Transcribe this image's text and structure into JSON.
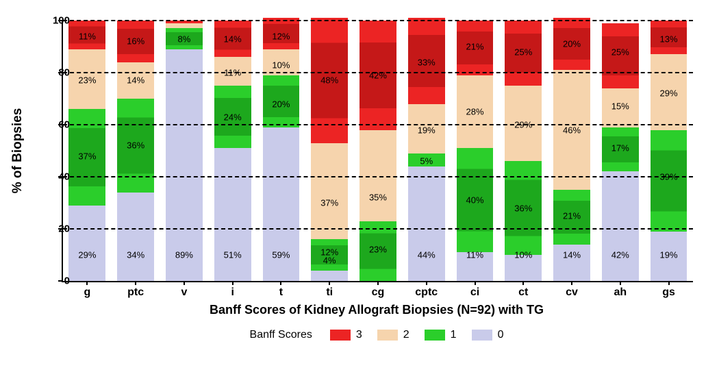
{
  "chart": {
    "type": "stacked-bar",
    "ylabel": "% of Biopsies",
    "xlabel": "Banff Scores of Kidney Allograft Biopsies (N=92) with TG",
    "ylim": [
      0,
      100
    ],
    "ytick_step": 20,
    "grid_dash_values": [
      20,
      40,
      60,
      80,
      100
    ],
    "background_color": "#ffffff",
    "axis_color": "#000000",
    "label_fontsize_pt": 14,
    "axis_title_fontsize_pt": 15,
    "xaxis_title_fontsize_pt": 14,
    "colors": {
      "score0": "#c9cbea",
      "score1": "#2bce2b",
      "score1_inner": "#1da81d",
      "score2": "#f6d4ad",
      "score3": "#ec2424",
      "score3_inner": "#c51818"
    },
    "legend": {
      "title": "Banff Scores",
      "items": [
        {
          "label": "3",
          "color_key": "score3"
        },
        {
          "label": "2",
          "color_key": "score2"
        },
        {
          "label": "1",
          "color_key": "score1"
        },
        {
          "label": "0",
          "color_key": "score0"
        }
      ]
    },
    "categories": [
      "g",
      "ptc",
      "v",
      "i",
      "t",
      "ti",
      "cg",
      "cptc",
      "ci",
      "ct",
      "cv",
      "ah",
      "gs"
    ],
    "series": [
      {
        "cat": "g",
        "segs": [
          {
            "score": 0,
            "val": 29,
            "label": "29%",
            "label_y": 10
          },
          {
            "score": 1,
            "val": 37,
            "label": "37%",
            "label_y": 48
          },
          {
            "score": 2,
            "val": 23,
            "label": "23%",
            "label_y": 77,
            "outside": true
          },
          {
            "score": 3,
            "val": 11,
            "label": "11%",
            "label_y": 94
          }
        ]
      },
      {
        "cat": "ptc",
        "segs": [
          {
            "score": 0,
            "val": 34,
            "label": "34%",
            "label_y": 10
          },
          {
            "score": 1,
            "val": 36,
            "label": "36%",
            "label_y": 52
          },
          {
            "score": 2,
            "val": 14,
            "label": "14%",
            "label_y": 77,
            "outside": true
          },
          {
            "score": 3,
            "val": 16,
            "label": "16%",
            "label_y": 92
          }
        ]
      },
      {
        "cat": "v",
        "segs": [
          {
            "score": 0,
            "val": 89,
            "label": "89%",
            "label_y": 10
          },
          {
            "score": 1,
            "val": 8,
            "label": "8%",
            "label_y": 93
          },
          {
            "score": 2,
            "val": 2,
            "label": "",
            "label_y": 0
          },
          {
            "score": 3,
            "val": 1,
            "label": "",
            "label_y": 0
          }
        ]
      },
      {
        "cat": "i",
        "segs": [
          {
            "score": 0,
            "val": 51,
            "label": "51%",
            "label_y": 10
          },
          {
            "score": 1,
            "val": 24,
            "label": "24%",
            "label_y": 63
          },
          {
            "score": 2,
            "val": 11,
            "label": "11%",
            "label_y": 80,
            "outside": true
          },
          {
            "score": 3,
            "val": 14,
            "label": "14%",
            "label_y": 93
          }
        ]
      },
      {
        "cat": "t",
        "segs": [
          {
            "score": 0,
            "val": 59,
            "label": "59%",
            "label_y": 10
          },
          {
            "score": 1,
            "val": 20,
            "label": "20%",
            "label_y": 68
          },
          {
            "score": 2,
            "val": 10,
            "label": "10%",
            "label_y": 83,
            "outside": true
          },
          {
            "score": 3,
            "val": 12,
            "label": "12%",
            "label_y": 94
          }
        ]
      },
      {
        "cat": "ti",
        "segs": [
          {
            "score": 0,
            "val": 4,
            "label": "4%",
            "label_y": 8,
            "outside": true
          },
          {
            "score": 1,
            "val": 12,
            "label": "12%",
            "label_y": 11
          },
          {
            "score": 2,
            "val": 37,
            "label": "37%",
            "label_y": 30,
            "outside": true
          },
          {
            "score": 3,
            "val": 48,
            "label": "48%",
            "label_y": 77
          }
        ]
      },
      {
        "cat": "cg",
        "segs": [
          {
            "score": 0,
            "val": 0,
            "label": "",
            "label_y": 0
          },
          {
            "score": 1,
            "val": 23,
            "label": "23%",
            "label_y": 12
          },
          {
            "score": 2,
            "val": 35,
            "label": "35%",
            "label_y": 32,
            "outside": true
          },
          {
            "score": 3,
            "val": 42,
            "label": "42%",
            "label_y": 79
          }
        ]
      },
      {
        "cat": "cptc",
        "segs": [
          {
            "score": 0,
            "val": 44,
            "label": "44%",
            "label_y": 10
          },
          {
            "score": 1,
            "val": 5,
            "label": "5%",
            "label_y": 46
          },
          {
            "score": 2,
            "val": 19,
            "label": "19%",
            "label_y": 58
          },
          {
            "score": 3,
            "val": 33,
            "label": "33%",
            "label_y": 84
          }
        ]
      },
      {
        "cat": "ci",
        "segs": [
          {
            "score": 0,
            "val": 11,
            "label": "11%",
            "label_y": 10,
            "outside": true
          },
          {
            "score": 1,
            "val": 40,
            "label": "40%",
            "label_y": 31
          },
          {
            "score": 2,
            "val": 28,
            "label": "28%",
            "label_y": 65
          },
          {
            "score": 3,
            "val": 21,
            "label": "21%",
            "label_y": 90
          }
        ]
      },
      {
        "cat": "ct",
        "segs": [
          {
            "score": 0,
            "val": 10,
            "label": "10%",
            "label_y": 10,
            "outside": true
          },
          {
            "score": 1,
            "val": 36,
            "label": "36%",
            "label_y": 28
          },
          {
            "score": 2,
            "val": 29,
            "label": "29%",
            "label_y": 60
          },
          {
            "score": 3,
            "val": 25,
            "label": "25%",
            "label_y": 88
          }
        ]
      },
      {
        "cat": "cv",
        "segs": [
          {
            "score": 0,
            "val": 14,
            "label": "14%",
            "label_y": 10,
            "outside": true
          },
          {
            "score": 1,
            "val": 21,
            "label": "21%",
            "label_y": 25
          },
          {
            "score": 2,
            "val": 46,
            "label": "46%",
            "label_y": 58
          },
          {
            "score": 3,
            "val": 20,
            "label": "20%",
            "label_y": 91
          }
        ]
      },
      {
        "cat": "ah",
        "segs": [
          {
            "score": 0,
            "val": 42,
            "label": "42%",
            "label_y": 10
          },
          {
            "score": 1,
            "val": 17,
            "label": "17%",
            "label_y": 51
          },
          {
            "score": 2,
            "val": 15,
            "label": "15%",
            "label_y": 67
          },
          {
            "score": 3,
            "val": 25,
            "label": "25%",
            "label_y": 88
          }
        ]
      },
      {
        "cat": "gs",
        "segs": [
          {
            "score": 0,
            "val": 19,
            "label": "19%",
            "label_y": 10,
            "outside": true
          },
          {
            "score": 1,
            "val": 39,
            "label": "39%",
            "label_y": 40
          },
          {
            "score": 2,
            "val": 29,
            "label": "29%",
            "label_y": 72
          },
          {
            "score": 3,
            "val": 13,
            "label": "13%",
            "label_y": 93
          }
        ]
      }
    ]
  }
}
